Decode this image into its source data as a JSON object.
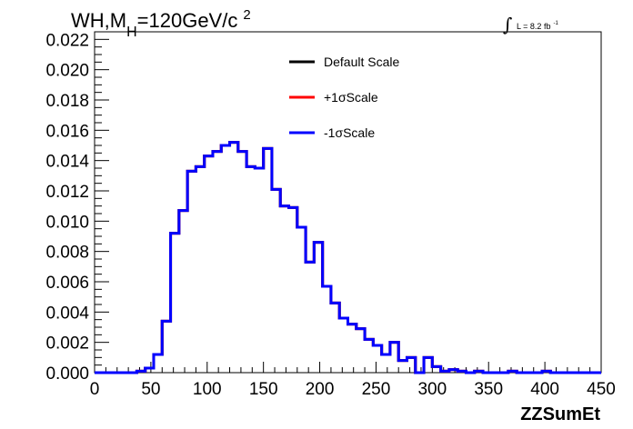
{
  "title": {
    "main": "WH,M",
    "subscript": "H",
    "rest": "=120GeV/c",
    "superscript": "2"
  },
  "lumi": {
    "integral": "∫",
    "text": "L = 8.2 fb",
    "superscript": "-1"
  },
  "chart_data": {
    "type": "line",
    "step": true,
    "xlabel": "ZZSumEt",
    "ylabel": "",
    "xlim": [
      0,
      450
    ],
    "ylim": [
      0,
      0.0225
    ],
    "x_ticks": [
      0,
      50,
      100,
      150,
      200,
      250,
      300,
      350,
      400,
      450
    ],
    "x_tick_labels": [
      "0",
      "50",
      "100",
      "150",
      "200",
      "250",
      "300",
      "350",
      "400",
      "450"
    ],
    "y_ticks": [
      0,
      0.002,
      0.004,
      0.006,
      0.008,
      0.01,
      0.012,
      0.014,
      0.016,
      0.018,
      0.02,
      0.022
    ],
    "y_tick_labels": [
      "0.000",
      "0.002",
      "0.004",
      "0.006",
      "0.008",
      "0.010",
      "0.012",
      "0.014",
      "0.016",
      "0.018",
      "0.020",
      "0.022"
    ],
    "grid": false,
    "legend_position": "top-center",
    "bin_edges": [
      0,
      7.5,
      15,
      22.5,
      30,
      37.5,
      45,
      52.5,
      60,
      67.5,
      75,
      82.5,
      90,
      97.5,
      105,
      112.5,
      120,
      127.5,
      135,
      142.5,
      150,
      157.5,
      165,
      172.5,
      180,
      187.5,
      195,
      202.5,
      210,
      217.5,
      225,
      232.5,
      240,
      247.5,
      255,
      262.5,
      270,
      277.5,
      285,
      292.5,
      300,
      307.5,
      315,
      322.5,
      330,
      337.5,
      345,
      352.5,
      360,
      367.5,
      375,
      382.5,
      390,
      397.5,
      405,
      412.5,
      420,
      427.5,
      435,
      442.5,
      450
    ],
    "series": [
      {
        "name": "Default Scale",
        "color": "#000000",
        "values": [
          0,
          0,
          0,
          0,
          0,
          0.0001,
          0.0003,
          0.0012,
          0.0034,
          0.0092,
          0.0107,
          0.0133,
          0.0136,
          0.0143,
          0.0146,
          0.015,
          0.0152,
          0.0146,
          0.0136,
          0.0135,
          0.0148,
          0.0121,
          0.011,
          0.0109,
          0.0096,
          0.0073,
          0.0086,
          0.0057,
          0.0046,
          0.0036,
          0.0032,
          0.0029,
          0.0022,
          0.0018,
          0.0012,
          0.002,
          0.0008,
          0.001,
          0,
          0.001,
          0.0004,
          0.0001,
          0.0002,
          0.0001,
          0,
          0.0001,
          0,
          0,
          0,
          0.0001,
          0,
          0,
          0,
          0.0001,
          0,
          0,
          0,
          0,
          0,
          0
        ]
      },
      {
        "name": "+1σScale",
        "color": "#ff0000",
        "values": [
          0,
          0,
          0,
          0,
          0,
          0.0001,
          0.0003,
          0.0012,
          0.0034,
          0.0092,
          0.0107,
          0.0133,
          0.0136,
          0.0143,
          0.0146,
          0.015,
          0.0152,
          0.0146,
          0.0136,
          0.0135,
          0.0148,
          0.0121,
          0.011,
          0.0109,
          0.0096,
          0.0073,
          0.0086,
          0.0057,
          0.0046,
          0.0036,
          0.0032,
          0.0029,
          0.0022,
          0.0018,
          0.0012,
          0.002,
          0.0008,
          0.001,
          0,
          0.001,
          0.0004,
          0.0001,
          0.0002,
          0.0001,
          0,
          0.0001,
          0,
          0,
          0,
          0.0001,
          0,
          0,
          0,
          0.0001,
          0,
          0,
          0,
          0,
          0,
          0
        ]
      },
      {
        "name": "-1σScale",
        "color": "#0000ff",
        "values": [
          0,
          0,
          0,
          0,
          0,
          0.0001,
          0.0003,
          0.0012,
          0.0034,
          0.0092,
          0.0107,
          0.0133,
          0.0136,
          0.0143,
          0.0146,
          0.015,
          0.0152,
          0.0146,
          0.0136,
          0.0135,
          0.0148,
          0.0121,
          0.011,
          0.0109,
          0.0096,
          0.0073,
          0.0086,
          0.0057,
          0.0046,
          0.0036,
          0.0032,
          0.0029,
          0.0022,
          0.0018,
          0.0012,
          0.002,
          0.0008,
          0.001,
          0,
          0.001,
          0.0004,
          0.0001,
          0.0002,
          0.0001,
          0,
          0.0001,
          0,
          0,
          0,
          0.0001,
          0,
          0,
          0,
          0.0001,
          0,
          0,
          0,
          0,
          0,
          0
        ]
      }
    ]
  }
}
